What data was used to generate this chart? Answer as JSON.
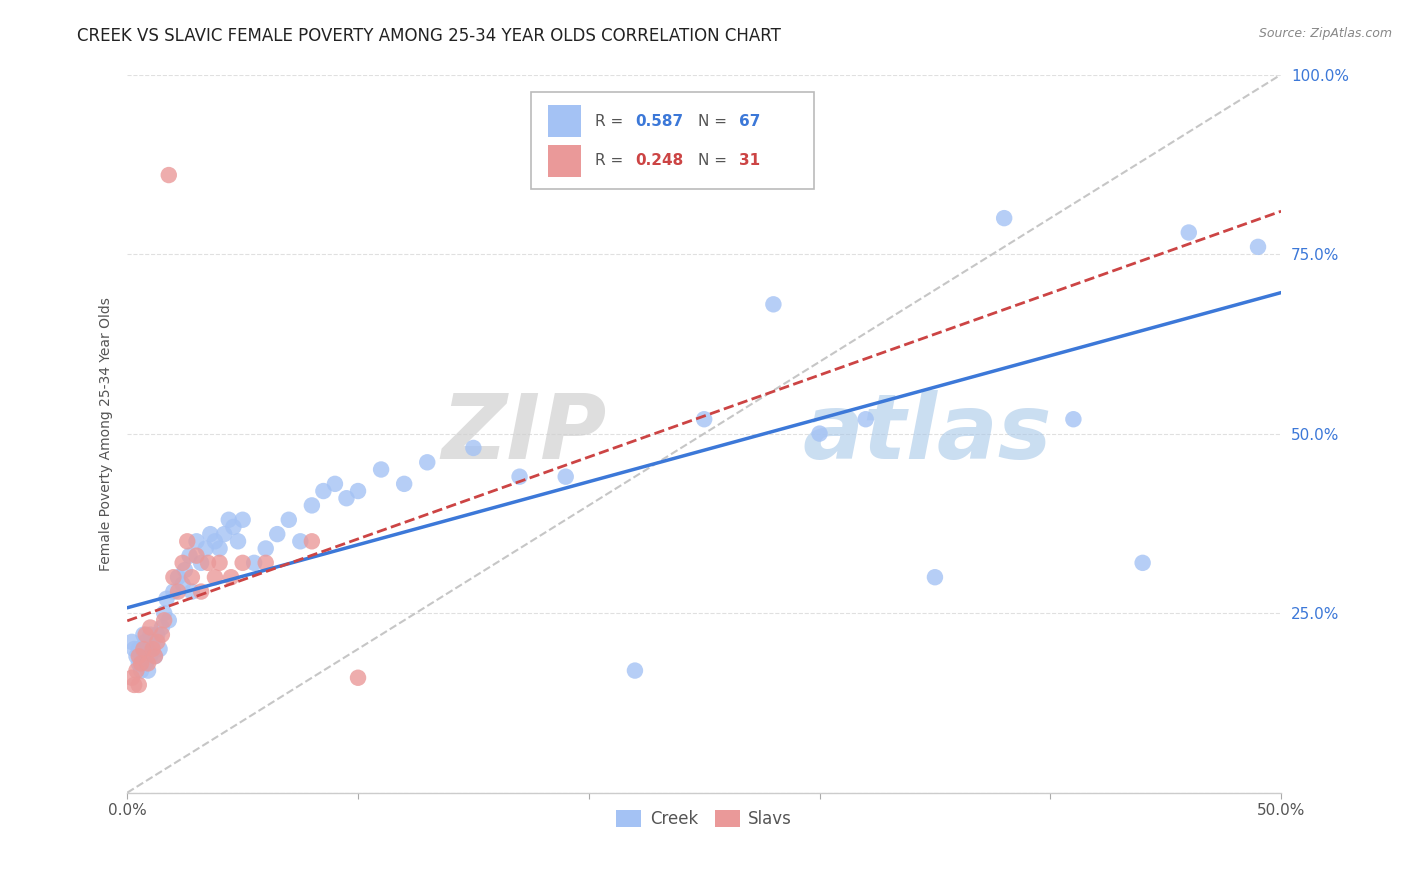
{
  "title": "CREEK VS SLAVIC FEMALE POVERTY AMONG 25-34 YEAR OLDS CORRELATION CHART",
  "source": "Source: ZipAtlas.com",
  "ylabel": "Female Poverty Among 25-34 Year Olds",
  "xlim": [
    0.0,
    0.5
  ],
  "ylim": [
    0.0,
    1.0
  ],
  "creek_color": "#a4c2f4",
  "slavs_color": "#ea9999",
  "creek_line_color": "#3c78d8",
  "slavs_line_color": "#cc4444",
  "diag_line_color": "#c0c0c0",
  "creek_R": 0.587,
  "creek_N": 67,
  "slavs_R": 0.248,
  "slavs_N": 31,
  "legend_creek_label": "Creek",
  "legend_slavs_label": "Slavs",
  "watermark_zip": "ZIP",
  "watermark_atlas": "atlas",
  "title_fontsize": 12,
  "axis_label_fontsize": 10,
  "tick_fontsize": 11,
  "background_color": "#ffffff",
  "grid_color": "#e0e0e0",
  "title_color": "#222222",
  "source_color": "#888888",
  "ylabel_color": "#555555",
  "xtick_color": "#555555",
  "ytick_color": "#3c78d8",
  "creek_x": [
    0.002,
    0.003,
    0.004,
    0.005,
    0.005,
    0.006,
    0.006,
    0.007,
    0.007,
    0.008,
    0.008,
    0.009,
    0.009,
    0.01,
    0.01,
    0.011,
    0.012,
    0.013,
    0.014,
    0.015,
    0.016,
    0.017,
    0.018,
    0.02,
    0.022,
    0.024,
    0.025,
    0.027,
    0.028,
    0.03,
    0.032,
    0.034,
    0.036,
    0.038,
    0.04,
    0.042,
    0.044,
    0.046,
    0.048,
    0.05,
    0.055,
    0.06,
    0.065,
    0.07,
    0.075,
    0.08,
    0.085,
    0.09,
    0.095,
    0.1,
    0.11,
    0.12,
    0.13,
    0.15,
    0.17,
    0.19,
    0.22,
    0.25,
    0.28,
    0.3,
    0.32,
    0.35,
    0.38,
    0.41,
    0.44,
    0.46,
    0.49
  ],
  "creek_y": [
    0.21,
    0.2,
    0.19,
    0.2,
    0.18,
    0.19,
    0.17,
    0.22,
    0.19,
    0.21,
    0.18,
    0.2,
    0.17,
    0.22,
    0.19,
    0.21,
    0.19,
    0.22,
    0.2,
    0.23,
    0.25,
    0.27,
    0.24,
    0.28,
    0.3,
    0.29,
    0.31,
    0.33,
    0.28,
    0.35,
    0.32,
    0.34,
    0.36,
    0.35,
    0.34,
    0.36,
    0.38,
    0.37,
    0.35,
    0.38,
    0.32,
    0.34,
    0.36,
    0.38,
    0.35,
    0.4,
    0.42,
    0.43,
    0.41,
    0.42,
    0.45,
    0.43,
    0.46,
    0.48,
    0.44,
    0.44,
    0.17,
    0.52,
    0.68,
    0.5,
    0.52,
    0.3,
    0.8,
    0.52,
    0.32,
    0.78,
    0.76
  ],
  "slavs_x": [
    0.002,
    0.003,
    0.004,
    0.005,
    0.005,
    0.006,
    0.007,
    0.008,
    0.009,
    0.01,
    0.011,
    0.012,
    0.013,
    0.015,
    0.016,
    0.018,
    0.02,
    0.022,
    0.024,
    0.026,
    0.028,
    0.03,
    0.032,
    0.035,
    0.038,
    0.04,
    0.045,
    0.05,
    0.06,
    0.08,
    0.1
  ],
  "slavs_y": [
    0.16,
    0.15,
    0.17,
    0.15,
    0.19,
    0.18,
    0.2,
    0.22,
    0.18,
    0.23,
    0.2,
    0.19,
    0.21,
    0.22,
    0.24,
    0.86,
    0.3,
    0.28,
    0.32,
    0.35,
    0.3,
    0.33,
    0.28,
    0.32,
    0.3,
    0.32,
    0.3,
    0.32,
    0.32,
    0.35,
    0.16
  ]
}
